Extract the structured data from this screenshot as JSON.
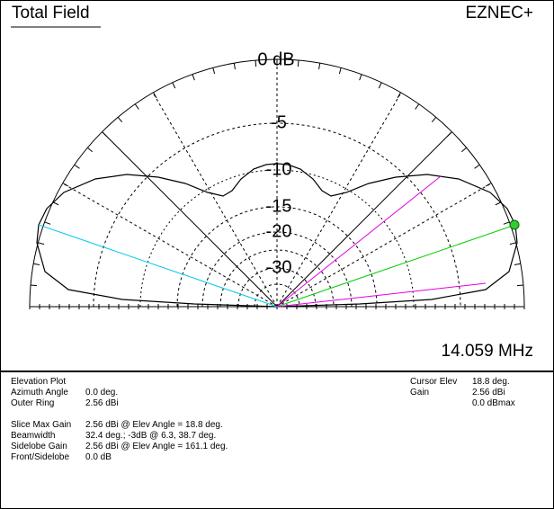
{
  "title": "Total Field",
  "app": "EZNEC+",
  "ring_labels": [
    "0 dB",
    "-5",
    "-10",
    "-15",
    "-20",
    "-30"
  ],
  "frequency": "14.059 MHz",
  "plot_type": "Elevation Plot",
  "settings": [
    {
      "label": "Azimuth Angle",
      "value": "0.0 deg."
    },
    {
      "label": "Outer Ring",
      "value": "2.56 dBi"
    }
  ],
  "results": [
    {
      "label": "Slice Max Gain",
      "value": "2.56 dBi @ Elev Angle = 18.8 deg."
    },
    {
      "label": "Beamwidth",
      "value": "32.4 deg.; -3dB @ 6.3, 38.7 deg."
    },
    {
      "label": "Sidelobe Gain",
      "value": "2.56 dBi @ Elev Angle = 161.1 deg."
    },
    {
      "label": "Front/Sidelobe",
      "value": "0.0 dB"
    }
  ],
  "cursor": [
    {
      "label": "Cursor Elev",
      "value": "18.8 deg."
    },
    {
      "label": "Gain",
      "value": "2.56 dBi"
    }
  ],
  "gain_max": "0.0 dBmax"
}
